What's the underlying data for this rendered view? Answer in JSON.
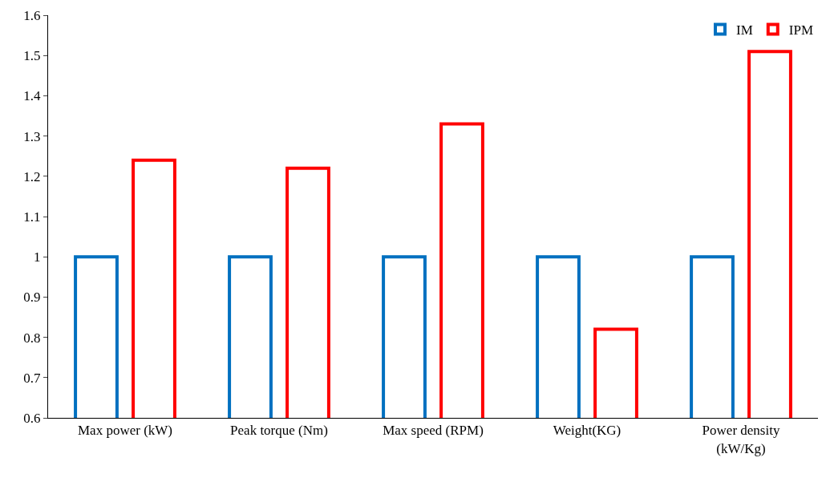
{
  "chart_data": {
    "type": "bar",
    "categories": [
      "Max power (kW)",
      "Peak torque (Nm)",
      "Max speed (RPM)",
      "Weight(KG)",
      "Power density\n(kW/Kg)"
    ],
    "series": [
      {
        "name": "IM",
        "color": "#0070c0",
        "values": [
          1,
          1,
          1,
          1,
          1
        ]
      },
      {
        "name": "IPM",
        "color": "#ff0000",
        "values": [
          1.24,
          1.22,
          1.33,
          0.82,
          1.51
        ]
      }
    ],
    "ylim": [
      0.6,
      1.6
    ],
    "yticks": [
      0.6,
      0.7,
      0.8,
      0.9,
      1,
      1.1,
      1.2,
      1.3,
      1.4,
      1.5,
      1.6
    ],
    "legend": "top right"
  }
}
